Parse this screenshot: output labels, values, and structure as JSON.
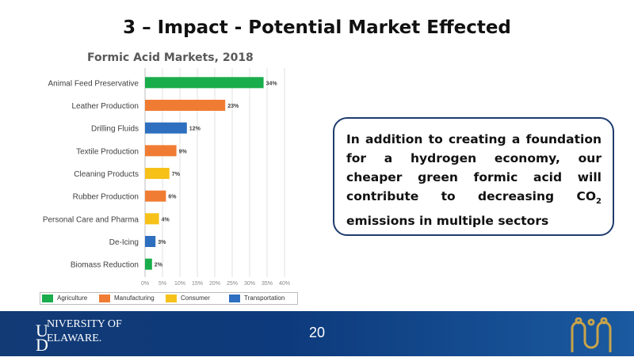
{
  "slide": {
    "title": "3 – Impact - Potential Market Effected",
    "callout": {
      "part1": "In addition to creating a foundation for a hydrogen economy, our cheaper green formic acid will contribute to decreasing CO",
      "subscript": "2",
      "part2": " emissions in multiple sectors"
    },
    "page_number": "20",
    "logo": {
      "big_letter_1": "U",
      "line1": "NIVERSITY OF",
      "big_letter_2": "D",
      "line2": "ELAWARE."
    }
  },
  "colors": {
    "Agriculture": "#19ad4b",
    "Manufacturing": "#f07c33",
    "Consumer": "#f6c21a",
    "Transportation": "#2e6fc0",
    "callout_border": "#1f3c6f"
  },
  "chart_data": {
    "type": "bar",
    "orientation": "horizontal",
    "title": "Formic Acid Markets, 2018",
    "categories": [
      "Animal Feed Preservative",
      "Leather Production",
      "Drilling Fluids",
      "Textile Production",
      "Cleaning Products",
      "Rubber Production",
      "Personal Care and Pharma",
      "De-Icing",
      "Biomass Reduction"
    ],
    "values": [
      34,
      23,
      12,
      9,
      7,
      6,
      4,
      3,
      2
    ],
    "value_labels": [
      "34%",
      "23%",
      "12%",
      "9%",
      "7%",
      "6%",
      "4%",
      "3%",
      "2%"
    ],
    "sectors": [
      "Agriculture",
      "Manufacturing",
      "Transportation",
      "Manufacturing",
      "Consumer",
      "Manufacturing",
      "Consumer",
      "Transportation",
      "Agriculture"
    ],
    "xlim": [
      0,
      40
    ],
    "xticks": [
      0,
      5,
      10,
      15,
      20,
      25,
      30,
      35,
      40
    ],
    "xtick_labels": [
      "0%",
      "5%",
      "10%",
      "15%",
      "20%",
      "25%",
      "30%",
      "35%",
      "40%"
    ],
    "grid": true,
    "legend": {
      "position": "bottom",
      "entries": [
        {
          "name": "Agriculture",
          "label": "Agriculture"
        },
        {
          "name": "Manufacturing",
          "label": "Manufacturing"
        },
        {
          "name": "Consumer",
          "label": "Consumer"
        },
        {
          "name": "Transportation",
          "label": "Transportation"
        }
      ]
    }
  }
}
